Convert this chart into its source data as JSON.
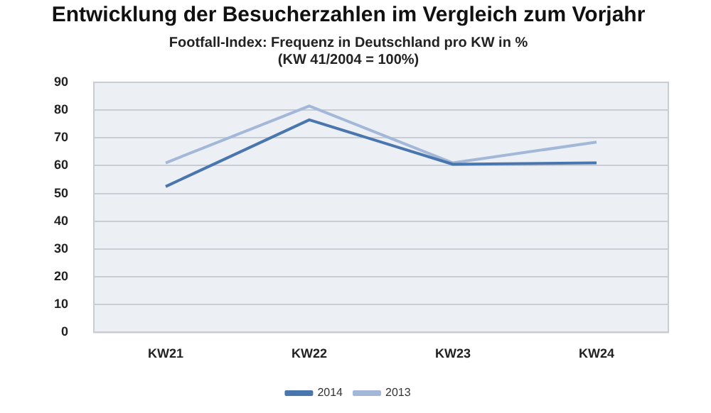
{
  "chart_data": {
    "type": "line",
    "title": "Entwicklung der Besucherzahlen im Vergleich zum Vorjahr",
    "subtitle": "Footfall-Index: Frequenz in Deutschland pro KW in %\n(KW 41/2004 = 100%)",
    "categories": [
      "KW21",
      "KW22",
      "KW23",
      "KW24"
    ],
    "series": [
      {
        "name": "2014",
        "color": "#4a76b0",
        "values": [
          52.5,
          76.5,
          60.5,
          61
        ]
      },
      {
        "name": "2013",
        "color": "#a3b8d8",
        "values": [
          61,
          81.5,
          61,
          68.5
        ]
      }
    ],
    "ylim": [
      0,
      90
    ],
    "yticks": [
      0,
      10,
      20,
      30,
      40,
      50,
      60,
      70,
      80,
      90
    ],
    "grid": "y",
    "legend": "bottom",
    "marker": "none",
    "line_style": "solid"
  }
}
